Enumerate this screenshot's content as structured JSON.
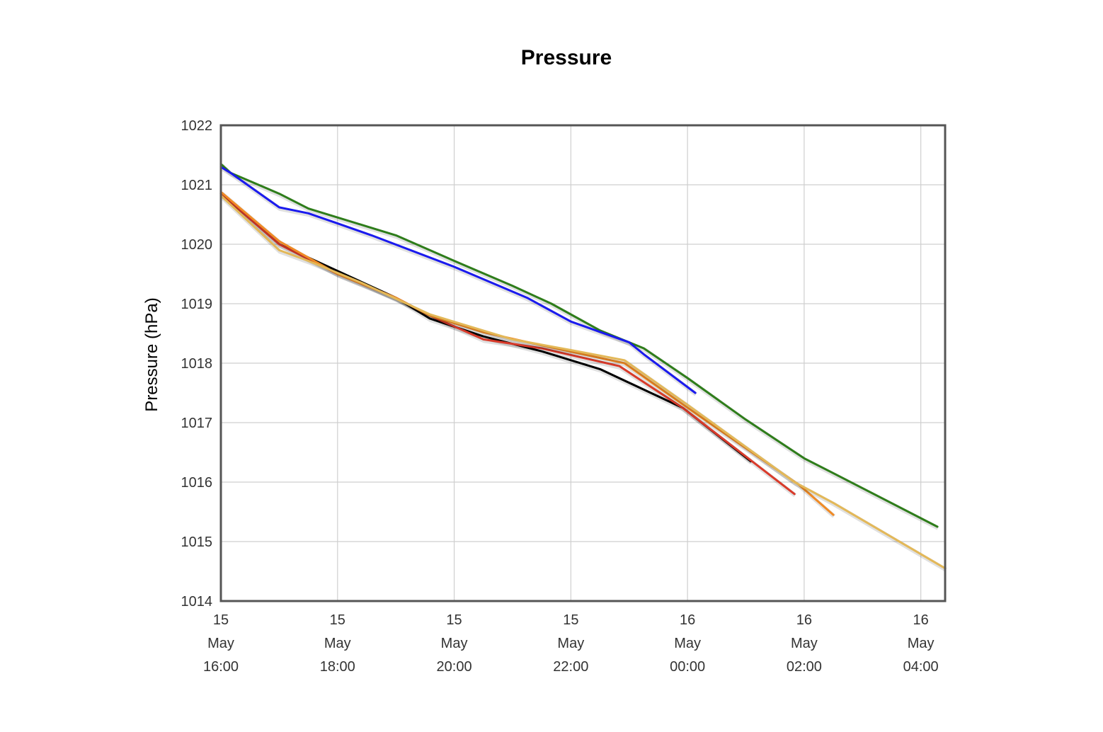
{
  "chart_data": {
    "type": "line",
    "title": "Pressure",
    "xlabel": "",
    "ylabel": "Pressure (hPa)",
    "ylim": [
      1014,
      1022
    ],
    "yticks": [
      1014,
      1015,
      1016,
      1017,
      1018,
      1019,
      1020,
      1021,
      1022
    ],
    "xlim": [
      "2015-05-15T16:00",
      "2015-05-16T04:25"
    ],
    "xticks": [
      {
        "t": "2015-05-15T16:00",
        "lines": [
          "15",
          "May",
          "16:00"
        ]
      },
      {
        "t": "2015-05-15T18:00",
        "lines": [
          "15",
          "May",
          "18:00"
        ]
      },
      {
        "t": "2015-05-15T20:00",
        "lines": [
          "15",
          "May",
          "20:00"
        ]
      },
      {
        "t": "2015-05-15T22:00",
        "lines": [
          "15",
          "May",
          "22:00"
        ]
      },
      {
        "t": "2015-05-16T00:00",
        "lines": [
          "16",
          "May",
          "00:00"
        ]
      },
      {
        "t": "2015-05-16T02:00",
        "lines": [
          "16",
          "May",
          "02:00"
        ]
      },
      {
        "t": "2015-05-16T04:00",
        "lines": [
          "16",
          "May",
          "04:00"
        ]
      }
    ],
    "grid": true,
    "legend": "none",
    "series": [
      {
        "color": "#2e7d1a",
        "points": [
          [
            "2015-05-15T16:00",
            1021.35
          ],
          [
            "2015-05-15T16:10",
            1021.2
          ],
          [
            "2015-05-15T17:00",
            1020.85
          ],
          [
            "2015-05-15T17:30",
            1020.6
          ],
          [
            "2015-05-15T18:30",
            1020.3
          ],
          [
            "2015-05-15T19:00",
            1020.15
          ],
          [
            "2015-05-15T20:00",
            1019.72
          ],
          [
            "2015-05-15T21:00",
            1019.3
          ],
          [
            "2015-05-15T21:40",
            1019.0
          ],
          [
            "2015-05-15T22:30",
            1018.55
          ],
          [
            "2015-05-15T23:15",
            1018.25
          ],
          [
            "2015-05-16T00:00",
            1017.75
          ],
          [
            "2015-05-16T01:00",
            1017.05
          ],
          [
            "2015-05-16T02:00",
            1016.4
          ],
          [
            "2015-05-16T02:30",
            1016.15
          ],
          [
            "2015-05-16T04:17",
            1015.25
          ]
        ]
      },
      {
        "color": "#1a1aee",
        "points": [
          [
            "2015-05-15T16:00",
            1021.3
          ],
          [
            "2015-05-15T16:10",
            1021.2
          ],
          [
            "2015-05-15T17:00",
            1020.62
          ],
          [
            "2015-05-15T17:30",
            1020.52
          ],
          [
            "2015-05-15T18:00",
            1020.35
          ],
          [
            "2015-05-15T18:35",
            1020.15
          ],
          [
            "2015-05-15T20:00",
            1019.62
          ],
          [
            "2015-05-15T21:15",
            1019.1
          ],
          [
            "2015-05-15T22:00",
            1018.7
          ],
          [
            "2015-05-15T23:00",
            1018.35
          ],
          [
            "2015-05-15T23:15",
            1018.15
          ],
          [
            "2015-05-16T00:08",
            1017.5
          ]
        ]
      },
      {
        "color": "#000000",
        "points": [
          [
            "2015-05-15T16:00",
            1020.85
          ],
          [
            "2015-05-15T17:00",
            1020.0
          ],
          [
            "2015-05-15T18:00",
            1019.55
          ],
          [
            "2015-05-15T19:00",
            1019.1
          ],
          [
            "2015-05-15T19:35",
            1018.75
          ],
          [
            "2015-05-15T20:30",
            1018.45
          ],
          [
            "2015-05-15T21:30",
            1018.2
          ],
          [
            "2015-05-15T22:30",
            1017.9
          ],
          [
            "2015-05-15T23:55",
            1017.25
          ],
          [
            "2015-05-16T01:05",
            1016.35
          ]
        ]
      },
      {
        "color": "#d93a2a",
        "points": [
          [
            "2015-05-15T16:00",
            1020.85
          ],
          [
            "2015-05-15T17:00",
            1020.0
          ],
          [
            "2015-05-15T18:00",
            1019.5
          ],
          [
            "2015-05-15T19:00",
            1019.1
          ],
          [
            "2015-05-15T19:35",
            1018.8
          ],
          [
            "2015-05-15T20:30",
            1018.4
          ],
          [
            "2015-05-15T21:30",
            1018.25
          ],
          [
            "2015-05-15T22:50",
            1017.95
          ],
          [
            "2015-05-15T23:55",
            1017.25
          ],
          [
            "2015-05-16T01:50",
            1015.8
          ]
        ]
      },
      {
        "color": "#f08a24",
        "points": [
          [
            "2015-05-15T16:00",
            1020.88
          ],
          [
            "2015-05-15T17:00",
            1020.05
          ],
          [
            "2015-05-15T18:00",
            1019.5
          ],
          [
            "2015-05-15T19:00",
            1019.1
          ],
          [
            "2015-05-15T19:35",
            1018.8
          ],
          [
            "2015-05-15T20:30",
            1018.52
          ],
          [
            "2015-05-15T21:30",
            1018.3
          ],
          [
            "2015-05-15T22:55",
            1018.0
          ],
          [
            "2015-05-16T00:00",
            1017.25
          ],
          [
            "2015-05-16T01:55",
            1015.95
          ],
          [
            "2015-05-16T02:30",
            1015.45
          ]
        ]
      },
      {
        "color": "#e3b858",
        "points": [
          [
            "2015-05-15T16:00",
            1020.82
          ],
          [
            "2015-05-15T17:00",
            1019.9
          ],
          [
            "2015-05-15T17:30",
            1019.72
          ],
          [
            "2015-05-15T18:25",
            1019.35
          ],
          [
            "2015-05-15T19:35",
            1018.82
          ],
          [
            "2015-05-15T21:00",
            1018.4
          ],
          [
            "2015-05-15T22:00",
            1018.22
          ],
          [
            "2015-05-15T22:55",
            1018.05
          ],
          [
            "2015-05-16T00:00",
            1017.3
          ],
          [
            "2015-05-16T01:50",
            1016.0
          ],
          [
            "2015-05-16T02:30",
            1015.65
          ],
          [
            "2015-05-16T04:25",
            1014.55
          ]
        ]
      }
    ]
  }
}
